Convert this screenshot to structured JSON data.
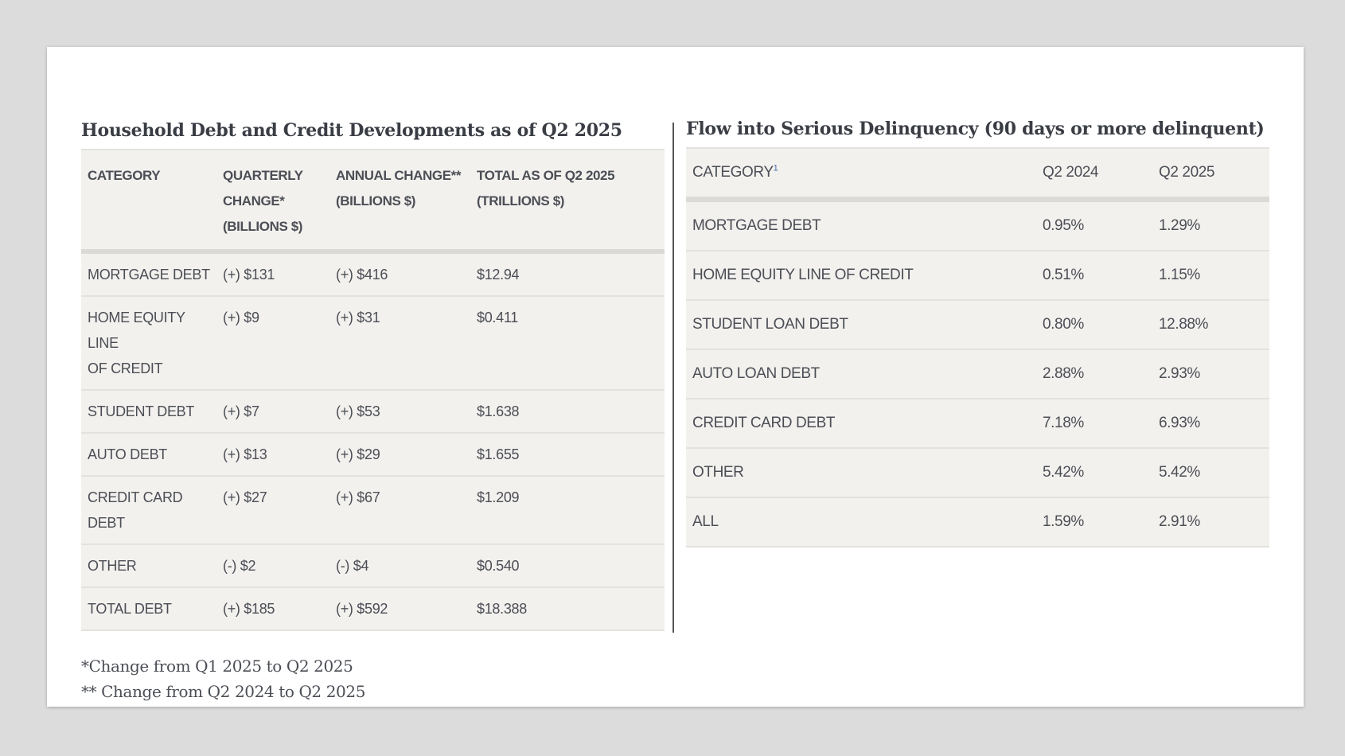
{
  "left_table": {
    "title": "Household Debt and Credit Developments as of Q2 2025",
    "headers": [
      [
        "CATEGORY"
      ],
      [
        "QUARTERLY",
        "CHANGE*",
        "(BILLIONS $)"
      ],
      [
        "ANNUAL CHANGE**",
        "(BILLIONS $)"
      ],
      [
        "TOTAL AS OF Q2 2025",
        "(TRILLIONS $)"
      ]
    ],
    "rows": [
      {
        "category": [
          "MORTGAGE DEBT"
        ],
        "quarterly": "(+) $131",
        "annual": "(+) $416",
        "total": "$12.94"
      },
      {
        "category": [
          "HOME EQUITY LINE",
          "OF CREDIT"
        ],
        "quarterly": "(+) $9",
        "annual": "(+) $31",
        "total": "$0.411"
      },
      {
        "category": [
          "STUDENT DEBT"
        ],
        "quarterly": "(+) $7",
        "annual": "(+) $53",
        "total": "$1.638"
      },
      {
        "category": [
          "AUTO DEBT"
        ],
        "quarterly": "(+) $13",
        "annual": "(+) $29",
        "total": "$1.655"
      },
      {
        "category": [
          "CREDIT CARD DEBT"
        ],
        "quarterly": "(+) $27",
        "annual": "(+) $67",
        "total": "$1.209"
      },
      {
        "category": [
          "OTHER"
        ],
        "quarterly": "(-) $2",
        "annual": "(-) $4",
        "total": "$0.540"
      },
      {
        "category": [
          "TOTAL DEBT"
        ],
        "quarterly": "(+) $185",
        "annual": "(+) $592",
        "total": "$18.388"
      }
    ],
    "notes": [
      "*Change from Q1 2025 to Q2 2025",
      "** Change from Q2 2024 to Q2 2025"
    ]
  },
  "right_table": {
    "title": "Flow into Serious Delinquency (90 days or more delinquent)",
    "headers": {
      "category": "CATEGORY",
      "footnote": "1",
      "col1": "Q2 2024",
      "col2": "Q2 2025"
    },
    "rows": [
      {
        "category": "MORTGAGE DEBT",
        "q2_2024": "0.95%",
        "q2_2025": "1.29%"
      },
      {
        "category": "HOME EQUITY LINE OF CREDIT",
        "q2_2024": "0.51%",
        "q2_2025": "1.15%"
      },
      {
        "category": "STUDENT LOAN DEBT",
        "q2_2024": "0.80%",
        "q2_2025": "12.88%"
      },
      {
        "category": "AUTO LOAN DEBT",
        "q2_2024": "2.88%",
        "q2_2025": "2.93%"
      },
      {
        "category": "CREDIT CARD DEBT",
        "q2_2024": "7.18%",
        "q2_2025": "6.93%"
      },
      {
        "category": "OTHER",
        "q2_2024": "5.42%",
        "q2_2025": "5.42%"
      },
      {
        "category": "ALL",
        "q2_2024": "1.59%",
        "q2_2025": "2.91%"
      }
    ]
  }
}
